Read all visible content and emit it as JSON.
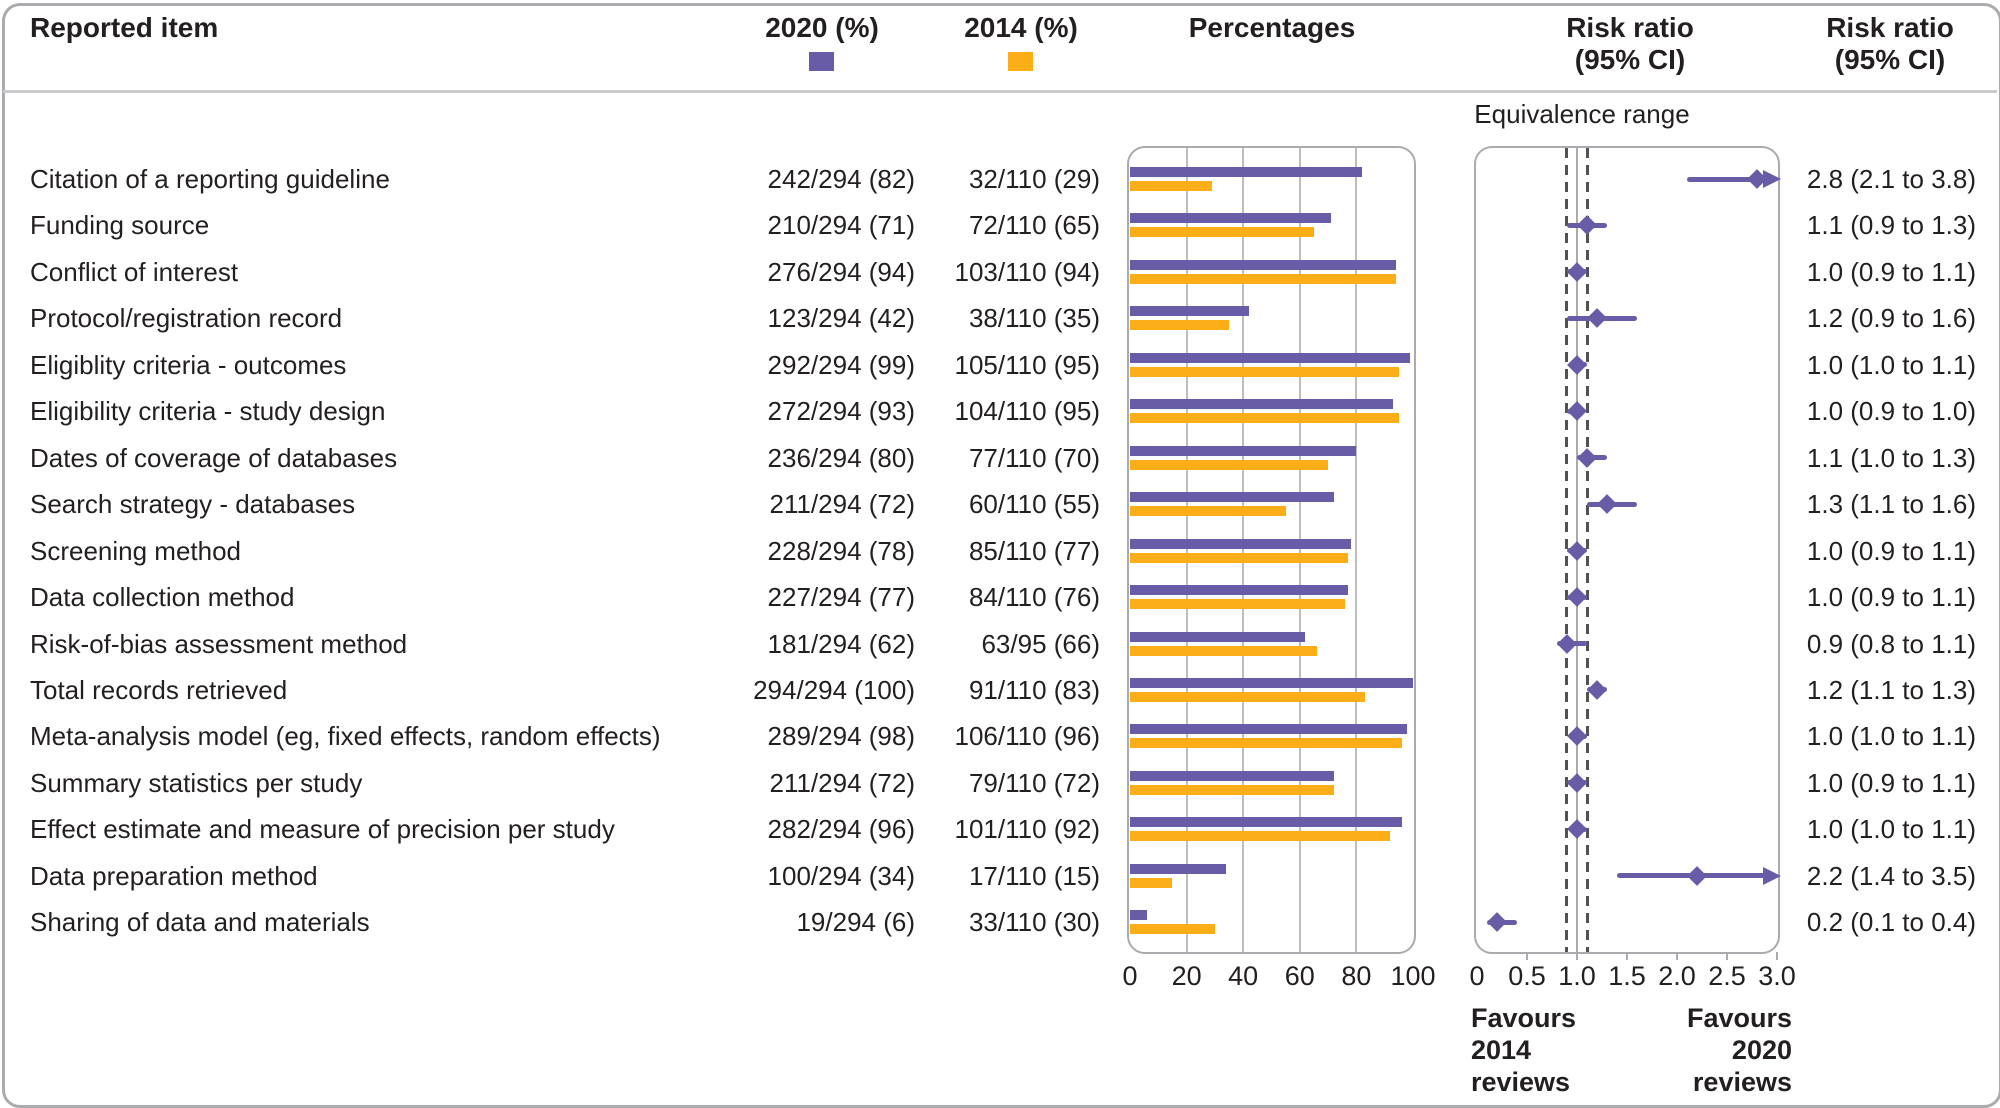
{
  "header": {
    "reported_item": "Reported item",
    "col_2020": "2020 (%)",
    "col_2014": "2014 (%)",
    "percentages": "Percentages",
    "risk_ratio_line1": "Risk ratio",
    "risk_ratio_line2": "(95% CI)"
  },
  "equivalence_label": "Equivalence range",
  "favours_left": {
    "line1": "Favours",
    "line2": "2014",
    "line3": "reviews"
  },
  "favours_right": {
    "line1": "Favours",
    "line2": "2020",
    "line3": "reviews"
  },
  "colors": {
    "purple_2020": "#685ca7",
    "orange_2014": "#fbae17",
    "text": "#231f20",
    "panel_border": "#a9abae",
    "gridline": "#bcbec0",
    "equivalence_dash": "#515254"
  },
  "chart_data": {
    "type": "bar",
    "subtype": "grouped horizontal bars with forest plot (risk ratios)",
    "legend_position": "top",
    "grid": true,
    "series": [
      {
        "name": "2020 (%)",
        "color": "#685ca7"
      },
      {
        "name": "2014 (%)",
        "color": "#fbae17"
      }
    ],
    "percent_axis": {
      "label": "Percentages",
      "ticks": [
        0,
        20,
        40,
        60,
        80,
        100
      ],
      "range": [
        0,
        100
      ]
    },
    "rr_axis": {
      "label": "Risk ratio (95% CI)",
      "tick_labels": [
        "0",
        "0.5",
        "1.0",
        "1.5",
        "2.0",
        "2.5",
        "3.0"
      ],
      "range": [
        0,
        3.0
      ],
      "equivalence_range": [
        0.9,
        1.1
      ],
      "reference_line": 1.0
    },
    "items": [
      {
        "label": "Citation of a reporting guideline",
        "v2020": "242/294 (82)",
        "pct2020": 82,
        "v2014": "32/110 (29)",
        "pct2014": 29,
        "rr": 2.8,
        "ci_low": 2.1,
        "ci_high": 3.8,
        "rr_text": "2.8 (2.1 to 3.8)"
      },
      {
        "label": "Funding source",
        "v2020": "210/294 (71)",
        "pct2020": 71,
        "v2014": "72/110 (65)",
        "pct2014": 65,
        "rr": 1.1,
        "ci_low": 0.9,
        "ci_high": 1.3,
        "rr_text": "1.1 (0.9 to 1.3)"
      },
      {
        "label": "Conflict of interest",
        "v2020": "276/294 (94)",
        "pct2020": 94,
        "v2014": "103/110 (94)",
        "pct2014": 94,
        "rr": 1.0,
        "ci_low": 0.9,
        "ci_high": 1.1,
        "rr_text": "1.0 (0.9 to 1.1)"
      },
      {
        "label": "Protocol/registration record",
        "v2020": "123/294 (42)",
        "pct2020": 42,
        "v2014": "38/110 (35)",
        "pct2014": 35,
        "rr": 1.2,
        "ci_low": 0.9,
        "ci_high": 1.6,
        "rr_text": "1.2 (0.9 to 1.6)"
      },
      {
        "label": "Eligiblity criteria - outcomes",
        "v2020": "292/294 (99)",
        "pct2020": 99,
        "v2014": "105/110 (95)",
        "pct2014": 95,
        "rr": 1.0,
        "ci_low": 1.0,
        "ci_high": 1.1,
        "rr_text": "1.0 (1.0 to 1.1)"
      },
      {
        "label": "Eligibility criteria - study design",
        "v2020": "272/294 (93)",
        "pct2020": 93,
        "v2014": "104/110 (95)",
        "pct2014": 95,
        "rr": 1.0,
        "ci_low": 0.9,
        "ci_high": 1.0,
        "rr_text": "1.0 (0.9 to 1.0)"
      },
      {
        "label": "Dates of coverage of databases",
        "v2020": "236/294 (80)",
        "pct2020": 80,
        "v2014": "77/110 (70)",
        "pct2014": 70,
        "rr": 1.1,
        "ci_low": 1.0,
        "ci_high": 1.3,
        "rr_text": "1.1 (1.0 to 1.3)"
      },
      {
        "label": "Search strategy - databases",
        "v2020": "211/294 (72)",
        "pct2020": 72,
        "v2014": "60/110 (55)",
        "pct2014": 55,
        "rr": 1.3,
        "ci_low": 1.1,
        "ci_high": 1.6,
        "rr_text": "1.3 (1.1 to 1.6)"
      },
      {
        "label": "Screening method",
        "v2020": "228/294 (78)",
        "pct2020": 78,
        "v2014": "85/110 (77)",
        "pct2014": 77,
        "rr": 1.0,
        "ci_low": 0.9,
        "ci_high": 1.1,
        "rr_text": "1.0 (0.9 to 1.1)"
      },
      {
        "label": "Data collection method",
        "v2020": "227/294 (77)",
        "pct2020": 77,
        "v2014": "84/110 (76)",
        "pct2014": 76,
        "rr": 1.0,
        "ci_low": 0.9,
        "ci_high": 1.1,
        "rr_text": "1.0 (0.9 to 1.1)"
      },
      {
        "label": "Risk-of-bias assessment method",
        "v2020": "181/294 (62)",
        "pct2020": 62,
        "v2014": "63/95 (66)",
        "pct2014": 66,
        "rr": 0.9,
        "ci_low": 0.8,
        "ci_high": 1.1,
        "rr_text": "0.9 (0.8 to 1.1)"
      },
      {
        "label": "Total records retrieved",
        "v2020": "294/294 (100)",
        "pct2020": 100,
        "v2014": "91/110 (83)",
        "pct2014": 83,
        "rr": 1.2,
        "ci_low": 1.1,
        "ci_high": 1.3,
        "rr_text": "1.2 (1.1 to 1.3)"
      },
      {
        "label": "Meta-analysis model (eg, fixed effects, random effects)",
        "v2020": "289/294 (98)",
        "pct2020": 98,
        "v2014": "106/110 (96)",
        "pct2014": 96,
        "rr": 1.0,
        "ci_low": 1.0,
        "ci_high": 1.1,
        "rr_text": "1.0 (1.0 to 1.1)"
      },
      {
        "label": "Summary statistics per study",
        "v2020": "211/294 (72)",
        "pct2020": 72,
        "v2014": "79/110 (72)",
        "pct2014": 72,
        "rr": 1.0,
        "ci_low": 0.9,
        "ci_high": 1.1,
        "rr_text": "1.0 (0.9 to 1.1)"
      },
      {
        "label": "Effect estimate and measure of precision per study",
        "v2020": "282/294 (96)",
        "pct2020": 96,
        "v2014": "101/110 (92)",
        "pct2014": 92,
        "rr": 1.0,
        "ci_low": 1.0,
        "ci_high": 1.1,
        "rr_text": "1.0 (1.0 to 1.1)"
      },
      {
        "label": "Data preparation method",
        "v2020": "100/294 (34)",
        "pct2020": 34,
        "v2014": "17/110 (15)",
        "pct2014": 15,
        "rr": 2.2,
        "ci_low": 1.4,
        "ci_high": 3.5,
        "rr_text": "2.2 (1.4 to 3.5)"
      },
      {
        "label": "Sharing of data and materials",
        "v2020": "19/294 (6)",
        "pct2020": 6,
        "v2014": "33/110 (30)",
        "pct2014": 30,
        "rr": 0.2,
        "ci_low": 0.1,
        "ci_high": 0.4,
        "rr_text": "0.2 (0.1 to 0.4)"
      }
    ]
  }
}
